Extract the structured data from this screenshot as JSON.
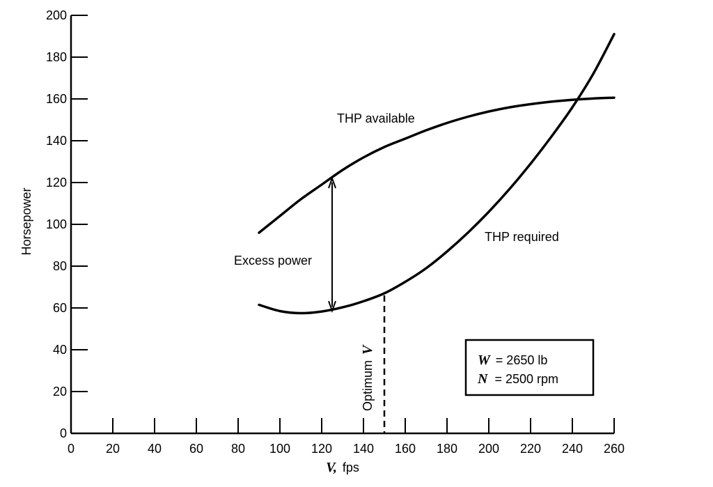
{
  "chart_data": {
    "type": "line",
    "title": "",
    "xlabel_var": "V,",
    "xlabel_unit": "fps",
    "ylabel": "Horsepower",
    "xlim": [
      0,
      260
    ],
    "ylim": [
      0,
      200
    ],
    "xticks": [
      0,
      20,
      40,
      60,
      80,
      100,
      120,
      140,
      160,
      180,
      200,
      220,
      240,
      260
    ],
    "yticks": [
      0,
      20,
      40,
      60,
      80,
      100,
      120,
      140,
      160,
      180,
      200
    ],
    "grid": false,
    "series": [
      {
        "name": "THP available",
        "x": [
          90,
          100,
          110,
          120,
          130,
          140,
          150,
          160,
          170,
          180,
          190,
          200,
          210,
          220,
          230,
          240,
          250,
          260
        ],
        "y": [
          96,
          104,
          112,
          119,
          126,
          132,
          137,
          141,
          145,
          148.5,
          151.5,
          154,
          156,
          157.5,
          158.7,
          159.6,
          160.2,
          160.6
        ]
      },
      {
        "name": "THP required",
        "x": [
          90,
          100,
          110,
          120,
          130,
          140,
          150,
          160,
          170,
          180,
          190,
          200,
          210,
          220,
          230,
          240,
          250,
          260
        ],
        "y": [
          61.5,
          58.5,
          57.5,
          58.3,
          60.3,
          63.2,
          67,
          72.5,
          79,
          87,
          96,
          106,
          117,
          129,
          142,
          156,
          172,
          191
        ]
      }
    ],
    "annotations": {
      "excess_power": {
        "label": "Excess power",
        "x": 125,
        "y_from": 58.6,
        "y_to": 122
      },
      "optimum": {
        "label": "Optimum",
        "var": "V",
        "x": 150,
        "y_from": 0,
        "y_to": 66
      },
      "params": {
        "w_var": "W",
        "w_value": "= 2650 lb",
        "n_var": "N",
        "n_value": "= 2500 rpm"
      }
    }
  }
}
